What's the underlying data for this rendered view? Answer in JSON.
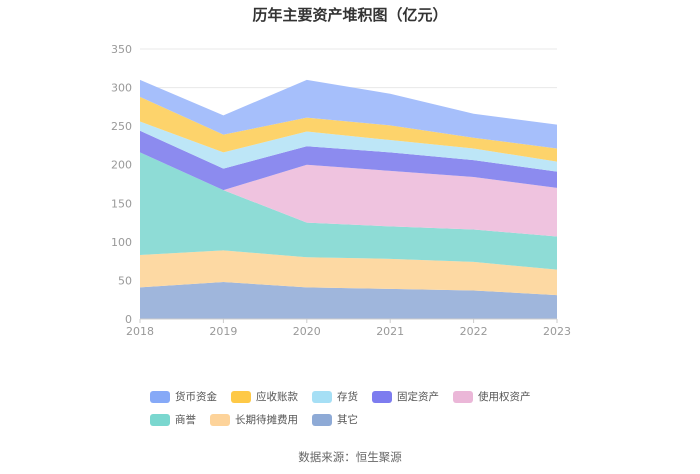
{
  "chart_data": {
    "type": "area",
    "stacked": true,
    "title": "历年主要资产堆积图（亿元）",
    "x": [
      "2018",
      "2019",
      "2020",
      "2021",
      "2022",
      "2023"
    ],
    "y_ticks": [
      "0",
      "50",
      "100",
      "150",
      "200",
      "250",
      "300",
      "350"
    ],
    "ylim": [
      0,
      350
    ],
    "grid": true,
    "legend_position": "bottom",
    "series": [
      {
        "name": "其它",
        "color": "#9fb6dc",
        "values": [
          41,
          48,
          41,
          39,
          37,
          31
        ]
      },
      {
        "name": "长期待摊费用",
        "color": "#fdd9a3",
        "values": [
          42,
          41,
          39,
          39,
          37,
          33
        ]
      },
      {
        "name": "商誉",
        "color": "#8edcd6",
        "values": [
          133,
          78,
          45,
          42,
          42,
          43
        ]
      },
      {
        "name": "使用权资产",
        "color": "#efc3df",
        "values": [
          0,
          0,
          75,
          72,
          68,
          63
        ]
      },
      {
        "name": "固定资产",
        "color": "#8c8bef",
        "values": [
          28,
          28,
          24,
          24,
          22,
          21
        ]
      },
      {
        "name": "存货",
        "color": "#bde6f7",
        "values": [
          12,
          21,
          19,
          16,
          15,
          13
        ]
      },
      {
        "name": "应收账款",
        "color": "#fdd36b",
        "values": [
          32,
          23,
          18,
          19,
          14,
          17
        ]
      },
      {
        "name": "货币资金",
        "color": "#a6bffb",
        "values": [
          22,
          25,
          49,
          41,
          31,
          31
        ]
      }
    ],
    "legend_order": [
      "货币资金",
      "应收账款",
      "存货",
      "固定资产",
      "使用权资产",
      "商誉",
      "长期待摊费用",
      "其它"
    ]
  },
  "legend": [
    {
      "label": "货币资金",
      "color": "#86a9f7"
    },
    {
      "label": "应收账款",
      "color": "#fec947"
    },
    {
      "label": "存货",
      "color": "#a6dff5"
    },
    {
      "label": "固定资产",
      "color": "#7d7cef"
    },
    {
      "label": "使用权资产",
      "color": "#ebb7d8"
    },
    {
      "label": "商誉",
      "color": "#7ad7cf"
    },
    {
      "label": "长期待摊费用",
      "color": "#fdd39a"
    },
    {
      "label": "其它",
      "color": "#8eaad6"
    }
  ],
  "source": "数据来源：恒生聚源"
}
